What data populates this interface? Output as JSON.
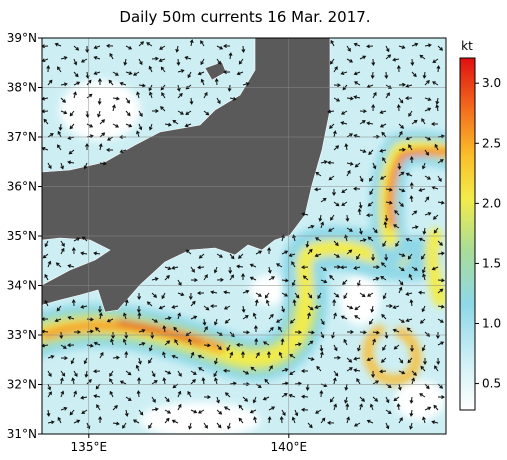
{
  "title": "Daily 50m currents 16 Mar. 2017.",
  "map": {
    "lat_lim": [
      31,
      39
    ],
    "lon_lim": [
      133.83,
      143.93
    ],
    "lat_ticks": [
      {
        "value": 39,
        "label": "39°N"
      },
      {
        "value": 38,
        "label": "38°N"
      },
      {
        "value": 37,
        "label": "37°N"
      },
      {
        "value": 36,
        "label": "36°N"
      },
      {
        "value": 35,
        "label": "35°N"
      },
      {
        "value": 34,
        "label": "34°N"
      },
      {
        "value": 33,
        "label": "33°N"
      },
      {
        "value": 32,
        "label": "32°N"
      },
      {
        "value": 31,
        "label": "31°N"
      }
    ],
    "lon_ticks": [
      {
        "value": 135,
        "label": "135°E"
      },
      {
        "value": 140,
        "label": "140°E"
      }
    ]
  },
  "colorbar": {
    "unit": "kt",
    "lim": [
      0.28,
      3.21
    ],
    "ticks": [
      0.5,
      {
        "value": 1,
        "label": "1.0"
      },
      1.5,
      {
        "value": 2,
        "label": "2.0"
      },
      2.5,
      {
        "value": 3,
        "label": "3.0"
      }
    ]
  }
}
